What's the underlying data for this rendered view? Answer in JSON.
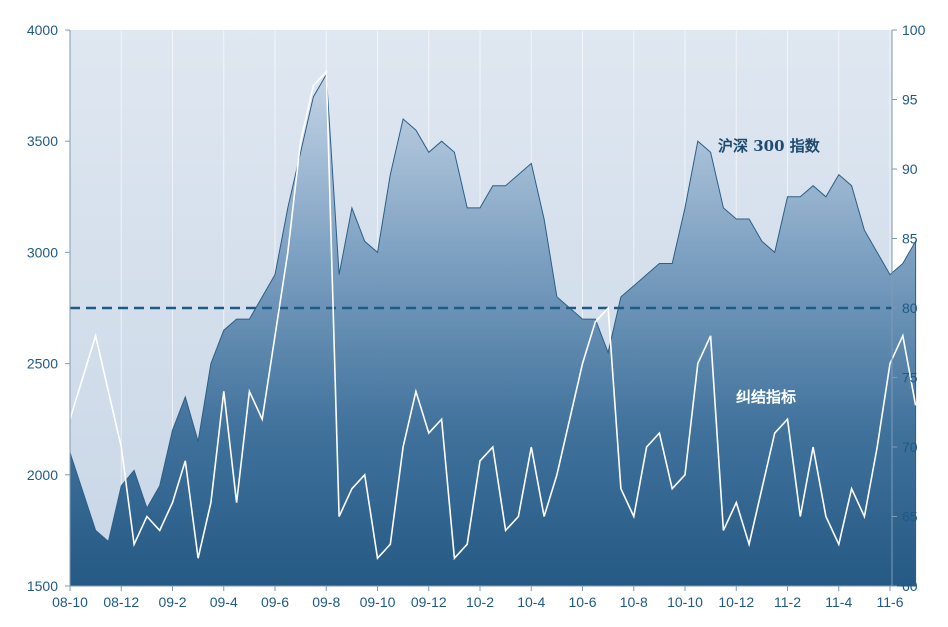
{
  "chart_data": {
    "type": "area",
    "title": "",
    "x_ticks": [
      "08-10",
      "08-12",
      "09-2",
      "09-4",
      "09-6",
      "09-8",
      "09-10",
      "09-12",
      "10-2",
      "10-4",
      "10-6",
      "10-8",
      "10-10",
      "10-12",
      "11-2",
      "11-4",
      "11-6"
    ],
    "y_left": {
      "ticks": [
        1500,
        2000,
        2500,
        3000,
        3500,
        4000
      ],
      "range": [
        1500,
        4000
      ]
    },
    "y_right": {
      "ticks": [
        60,
        65,
        70,
        75,
        80,
        85,
        90,
        95,
        100
      ],
      "range": [
        60,
        100
      ]
    },
    "reference_line": {
      "axis": "right",
      "value": 80,
      "style": "dashed"
    },
    "series": [
      {
        "name": "沪深300指数",
        "axis": "left",
        "style": "area",
        "color": "#2c5f86",
        "points": [
          [
            "08-10",
            2100
          ],
          [
            "08-11",
            1750
          ],
          [
            "08-11",
            1700
          ],
          [
            "08-12",
            1950
          ],
          [
            "08-12",
            2020
          ],
          [
            "09-1",
            1850
          ],
          [
            "09-1",
            1950
          ],
          [
            "09-2",
            2200
          ],
          [
            "09-2",
            2350
          ],
          [
            "09-3",
            2150
          ],
          [
            "09-3",
            2500
          ],
          [
            "09-4",
            2650
          ],
          [
            "09-4",
            2700
          ],
          [
            "09-5",
            2700
          ],
          [
            "09-5",
            2800
          ],
          [
            "09-6",
            2900
          ],
          [
            "09-6",
            3200
          ],
          [
            "09-7",
            3450
          ],
          [
            "09-7",
            3700
          ],
          [
            "09-8",
            3800
          ],
          [
            "09-8",
            2900
          ],
          [
            "09-9",
            3200
          ],
          [
            "09-9",
            3050
          ],
          [
            "09-10",
            3000
          ],
          [
            "09-10",
            3350
          ],
          [
            "09-11",
            3600
          ],
          [
            "09-11",
            3550
          ],
          [
            "09-12",
            3450
          ],
          [
            "09-12",
            3500
          ],
          [
            "10-1",
            3450
          ],
          [
            "10-1",
            3200
          ],
          [
            "10-2",
            3200
          ],
          [
            "10-2",
            3300
          ],
          [
            "10-3",
            3300
          ],
          [
            "10-3",
            3350
          ],
          [
            "10-4",
            3400
          ],
          [
            "10-4",
            3150
          ],
          [
            "10-5",
            2800
          ],
          [
            "10-5",
            2750
          ],
          [
            "10-6",
            2700
          ],
          [
            "10-6",
            2700
          ],
          [
            "10-7",
            2550
          ],
          [
            "10-7",
            2800
          ],
          [
            "10-8",
            2850
          ],
          [
            "10-8",
            2900
          ],
          [
            "10-9",
            2950
          ],
          [
            "10-9",
            2950
          ],
          [
            "10-10",
            3200
          ],
          [
            "10-10",
            3500
          ],
          [
            "10-11",
            3450
          ],
          [
            "10-11",
            3200
          ],
          [
            "10-12",
            3150
          ],
          [
            "10-12",
            3150
          ],
          [
            "11-1",
            3050
          ],
          [
            "11-1",
            3000
          ],
          [
            "11-2",
            3250
          ],
          [
            "11-2",
            3250
          ],
          [
            "11-3",
            3300
          ],
          [
            "11-3",
            3250
          ],
          [
            "11-4",
            3350
          ],
          [
            "11-4",
            3300
          ],
          [
            "11-5",
            3100
          ],
          [
            "11-5",
            3000
          ],
          [
            "11-6",
            2900
          ],
          [
            "11-6",
            2950
          ],
          [
            "11-7",
            3050
          ]
        ]
      },
      {
        "name": "纠结指标",
        "axis": "right",
        "style": "line",
        "color": "#ffffff",
        "points": [
          [
            "08-10",
            72
          ],
          [
            "08-11",
            78
          ],
          [
            "08-11",
            74
          ],
          [
            "08-12",
            70
          ],
          [
            "08-12",
            63
          ],
          [
            "09-1",
            65
          ],
          [
            "09-1",
            64
          ],
          [
            "09-2",
            66
          ],
          [
            "09-2",
            69
          ],
          [
            "09-3",
            62
          ],
          [
            "09-3",
            66
          ],
          [
            "09-4",
            74
          ],
          [
            "09-4",
            66
          ],
          [
            "09-5",
            74
          ],
          [
            "09-5",
            72
          ],
          [
            "09-6",
            78
          ],
          [
            "09-6",
            84
          ],
          [
            "09-7",
            92
          ],
          [
            "09-7",
            96
          ],
          [
            "09-8",
            97
          ],
          [
            "09-8",
            65
          ],
          [
            "09-9",
            67
          ],
          [
            "09-9",
            68
          ],
          [
            "09-10",
            62
          ],
          [
            "09-10",
            63
          ],
          [
            "09-11",
            70
          ],
          [
            "09-11",
            74
          ],
          [
            "09-12",
            71
          ],
          [
            "09-12",
            72
          ],
          [
            "10-1",
            62
          ],
          [
            "10-1",
            63
          ],
          [
            "10-2",
            69
          ],
          [
            "10-2",
            70
          ],
          [
            "10-3",
            64
          ],
          [
            "10-3",
            65
          ],
          [
            "10-4",
            70
          ],
          [
            "10-4",
            65
          ],
          [
            "10-5",
            68
          ],
          [
            "10-5",
            72
          ],
          [
            "10-6",
            76
          ],
          [
            "10-6",
            79
          ],
          [
            "10-7",
            80
          ],
          [
            "10-7",
            67
          ],
          [
            "10-8",
            65
          ],
          [
            "10-8",
            70
          ],
          [
            "10-9",
            71
          ],
          [
            "10-9",
            67
          ],
          [
            "10-10",
            68
          ],
          [
            "10-10",
            76
          ],
          [
            "10-11",
            78
          ],
          [
            "10-11",
            64
          ],
          [
            "10-12",
            66
          ],
          [
            "10-12",
            63
          ],
          [
            "11-1",
            67
          ],
          [
            "11-1",
            71
          ],
          [
            "11-2",
            72
          ],
          [
            "11-2",
            65
          ],
          [
            "11-3",
            70
          ],
          [
            "11-3",
            65
          ],
          [
            "11-4",
            63
          ],
          [
            "11-4",
            67
          ],
          [
            "11-5",
            65
          ],
          [
            "11-5",
            70
          ],
          [
            "11-6",
            76
          ],
          [
            "11-6",
            78
          ],
          [
            "11-7",
            73
          ]
        ]
      }
    ],
    "annotations": [
      {
        "text": "沪深 300 指数",
        "color": "#1f4a70"
      },
      {
        "text": "纠结指标",
        "color": "#ffffff"
      }
    ]
  }
}
